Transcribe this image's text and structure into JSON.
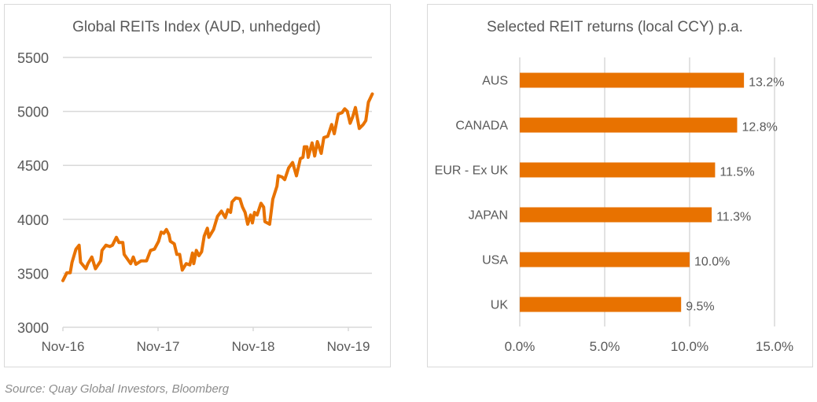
{
  "chart_data": [
    {
      "type": "line",
      "title": "Global REITs Index (AUD, unhedged)",
      "xlabel": "",
      "ylabel": "",
      "ylim": [
        3000,
        5500
      ],
      "yticks": [
        "3000",
        "3500",
        "4000",
        "4500",
        "5000",
        "5500"
      ],
      "xticks": [
        {
          "label": "Nov-16",
          "date": "2016-11-01"
        },
        {
          "label": "Nov-17",
          "date": "2017-11-01"
        },
        {
          "label": "Nov-18",
          "date": "2018-11-01"
        },
        {
          "label": "Nov-19",
          "date": "2019-11-01"
        }
      ],
      "grid": "horizontal",
      "color": "#E87200",
      "points": [
        [
          "2016-11-01",
          3432
        ],
        [
          "2016-11-16",
          3505
        ],
        [
          "2016-11-29",
          3505
        ],
        [
          "2016-12-06",
          3602
        ],
        [
          "2016-12-21",
          3724
        ],
        [
          "2017-01-02",
          3760
        ],
        [
          "2017-01-08",
          3602
        ],
        [
          "2017-01-28",
          3542
        ],
        [
          "2017-02-05",
          3590
        ],
        [
          "2017-02-20",
          3651
        ],
        [
          "2017-03-06",
          3542
        ],
        [
          "2017-03-26",
          3615
        ],
        [
          "2017-03-31",
          3712
        ],
        [
          "2017-04-15",
          3760
        ],
        [
          "2017-04-30",
          3748
        ],
        [
          "2017-05-10",
          3760
        ],
        [
          "2017-05-25",
          3833
        ],
        [
          "2017-06-04",
          3785
        ],
        [
          "2017-06-19",
          3785
        ],
        [
          "2017-06-24",
          3675
        ],
        [
          "2017-07-19",
          3590
        ],
        [
          "2017-07-29",
          3651
        ],
        [
          "2017-08-08",
          3583
        ],
        [
          "2017-08-28",
          3615
        ],
        [
          "2017-09-18",
          3615
        ],
        [
          "2017-10-03",
          3712
        ],
        [
          "2017-10-18",
          3724
        ],
        [
          "2017-11-03",
          3797
        ],
        [
          "2017-11-13",
          3882
        ],
        [
          "2017-11-23",
          3870
        ],
        [
          "2017-12-03",
          3906
        ],
        [
          "2017-12-13",
          3858
        ],
        [
          "2017-12-18",
          3797
        ],
        [
          "2018-01-02",
          3773
        ],
        [
          "2018-01-12",
          3675
        ],
        [
          "2018-01-23",
          3675
        ],
        [
          "2018-02-02",
          3530
        ],
        [
          "2018-02-17",
          3590
        ],
        [
          "2018-03-03",
          3578
        ],
        [
          "2018-03-13",
          3688
        ],
        [
          "2018-03-18",
          3590
        ],
        [
          "2018-03-28",
          3712
        ],
        [
          "2018-04-07",
          3663
        ],
        [
          "2018-04-17",
          3700
        ],
        [
          "2018-04-27",
          3845
        ],
        [
          "2018-05-09",
          3918
        ],
        [
          "2018-05-15",
          3833
        ],
        [
          "2018-06-02",
          3906
        ],
        [
          "2018-06-17",
          4028
        ],
        [
          "2018-07-02",
          4076
        ],
        [
          "2018-07-17",
          4016
        ],
        [
          "2018-07-27",
          4089
        ],
        [
          "2018-08-06",
          4064
        ],
        [
          "2018-08-12",
          4161
        ],
        [
          "2018-08-26",
          4198
        ],
        [
          "2018-09-11",
          4190
        ],
        [
          "2018-09-21",
          4113
        ],
        [
          "2018-10-01",
          4064
        ],
        [
          "2018-10-11",
          3955
        ],
        [
          "2018-10-22",
          4040
        ],
        [
          "2018-10-29",
          3967
        ],
        [
          "2018-11-06",
          4064
        ],
        [
          "2018-11-16",
          4040
        ],
        [
          "2018-12-01",
          4149
        ],
        [
          "2018-12-11",
          4113
        ],
        [
          "2018-12-16",
          3979
        ],
        [
          "2019-01-03",
          3955
        ],
        [
          "2019-01-15",
          4186
        ],
        [
          "2019-01-31",
          4307
        ],
        [
          "2019-02-05",
          4404
        ],
        [
          "2019-02-20",
          4392
        ],
        [
          "2019-03-02",
          4368
        ],
        [
          "2019-03-17",
          4477
        ],
        [
          "2019-04-01",
          4526
        ],
        [
          "2019-04-16",
          4404
        ],
        [
          "2019-05-01",
          4562
        ],
        [
          "2019-05-11",
          4574
        ],
        [
          "2019-05-16",
          4672
        ],
        [
          "2019-05-26",
          4672
        ],
        [
          "2019-05-31",
          4574
        ],
        [
          "2019-06-15",
          4708
        ],
        [
          "2019-06-25",
          4587
        ],
        [
          "2019-07-05",
          4720
        ],
        [
          "2019-07-20",
          4611
        ],
        [
          "2019-07-30",
          4757
        ],
        [
          "2019-08-14",
          4769
        ],
        [
          "2019-08-19",
          4805
        ],
        [
          "2019-08-29",
          4878
        ],
        [
          "2019-09-08",
          4793
        ],
        [
          "2019-09-23",
          4975
        ],
        [
          "2019-10-08",
          4988
        ],
        [
          "2019-10-18",
          5024
        ],
        [
          "2019-10-28",
          5000
        ],
        [
          "2019-11-08",
          4890
        ],
        [
          "2019-11-18",
          4951
        ],
        [
          "2019-11-28",
          5036
        ],
        [
          "2019-12-13",
          4842
        ],
        [
          "2019-12-28",
          4878
        ],
        [
          "2020-01-07",
          4915
        ],
        [
          "2020-01-17",
          5085
        ],
        [
          "2020-02-01",
          5162
        ]
      ]
    },
    {
      "type": "bar",
      "orientation": "horizontal",
      "title": "Selected REIT returns (local CCY) p.a.",
      "categories": [
        "AUS",
        "CANADA",
        "EUR - Ex UK",
        "JAPAN",
        "USA",
        "UK"
      ],
      "values": [
        13.2,
        12.8,
        11.5,
        11.3,
        10.0,
        9.5
      ],
      "data_labels": [
        "13.2%",
        "12.8%",
        "11.5%",
        "11.3%",
        "10.0%",
        "9.5%"
      ],
      "xlim": [
        0,
        15
      ],
      "xticks": [
        "0.0%",
        "5.0%",
        "10.0%",
        "15.0%"
      ],
      "grid": "vertical",
      "color": "#E87200"
    }
  ],
  "source": "Source: Quay Global Investors, Bloomberg"
}
